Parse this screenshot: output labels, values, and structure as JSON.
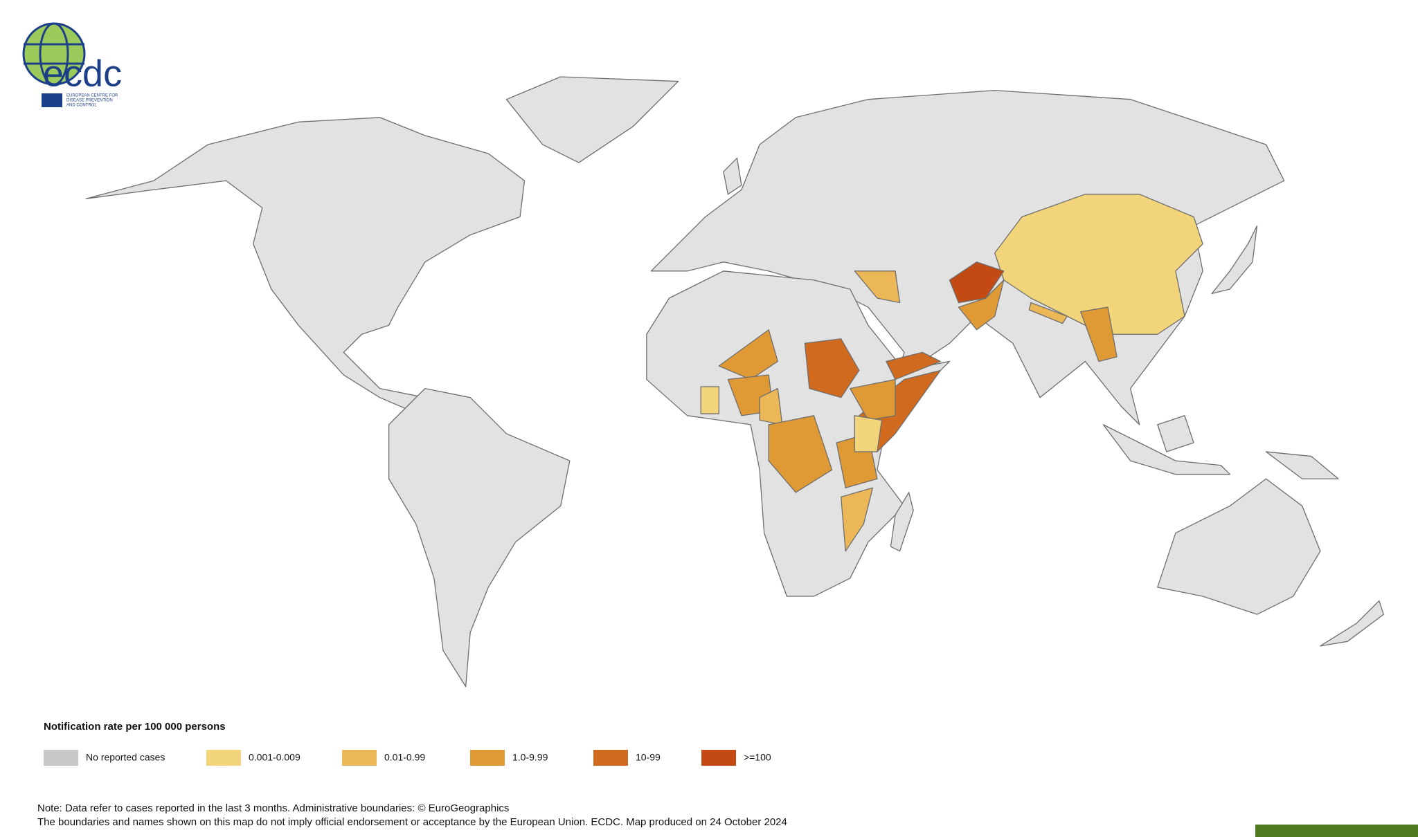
{
  "logo": {
    "name": "ecdc",
    "subtitle": [
      "EUROPEAN CENTRE FOR",
      "DISEASE PREVENTION",
      "AND CONTROL"
    ]
  },
  "legend": {
    "title": "Notification rate per 100 000 persons",
    "items": [
      {
        "label": "No reported cases",
        "color": "#c8c8c8"
      },
      {
        "label": "0.001-0.009",
        "color": "#f2d47a"
      },
      {
        "label": "0.01-0.99",
        "color": "#ecb757"
      },
      {
        "label": "1.0-9.99",
        "color": "#e09a35"
      },
      {
        "label": "10-99",
        "color": "#d06a1e"
      },
      {
        "label": ">=100",
        "color": "#c44a14"
      }
    ]
  },
  "notes": [
    "Note: Data refer to cases reported in the last 3 months. Administrative boundaries: © EuroGeographics",
    "The boundaries and names shown on this map do not imply official endorsement or acceptance by the European Union. ECDC. Map produced on 24 October 2024"
  ]
}
